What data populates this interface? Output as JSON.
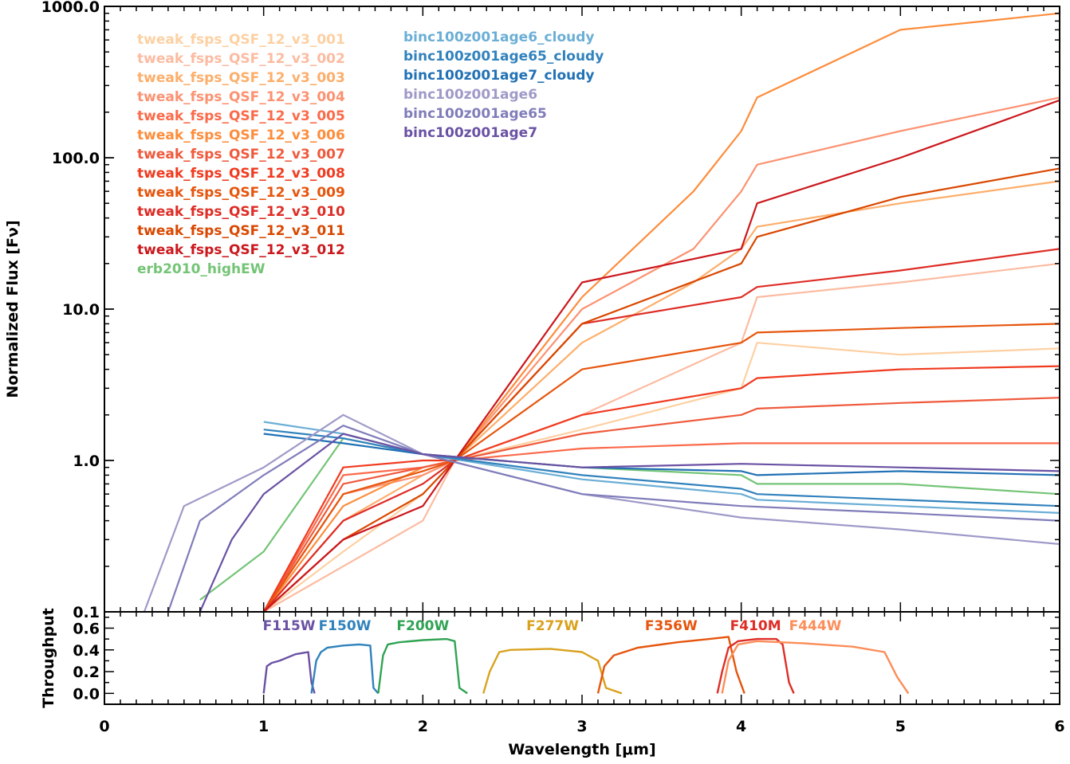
{
  "chart_data": [
    {
      "type": "line",
      "panel": "spectra",
      "title": "",
      "xlabel": "",
      "ylabel": "Normalized Flux [Fν]",
      "yscale": "log",
      "xlim": [
        0,
        6
      ],
      "ylim": [
        0.1,
        1000
      ],
      "yticks": [
        0.1,
        1.0,
        10.0,
        100.0,
        1000.0
      ],
      "ytick_labels": [
        "0.1",
        "1.0",
        "10.0",
        "100.0",
        "1000.0"
      ],
      "legend_left": [
        {
          "name": "tweak_fsps_QSF_12_v3_001",
          "color": "#fdd0a2"
        },
        {
          "name": "tweak_fsps_QSF_12_v3_002",
          "color": "#fcbba1"
        },
        {
          "name": "tweak_fsps_QSF_12_v3_003",
          "color": "#fdae6b"
        },
        {
          "name": "tweak_fsps_QSF_12_v3_004",
          "color": "#fc9272"
        },
        {
          "name": "tweak_fsps_QSF_12_v3_005",
          "color": "#fb6a4a"
        },
        {
          "name": "tweak_fsps_QSF_12_v3_006",
          "color": "#fd8d3c"
        },
        {
          "name": "tweak_fsps_QSF_12_v3_007",
          "color": "#ef5a3c"
        },
        {
          "name": "tweak_fsps_QSF_12_v3_008",
          "color": "#f03b20"
        },
        {
          "name": "tweak_fsps_QSF_12_v3_009",
          "color": "#e6550d"
        },
        {
          "name": "tweak_fsps_QSF_12_v3_010",
          "color": "#de2d26"
        },
        {
          "name": "tweak_fsps_QSF_12_v3_011",
          "color": "#d94801"
        },
        {
          "name": "tweak_fsps_QSF_12_v3_012",
          "color": "#cb181d"
        },
        {
          "name": "erb2010_highEW",
          "color": "#74c476"
        }
      ],
      "legend_right": [
        {
          "name": "binc100z001age6_cloudy",
          "color": "#6baed6"
        },
        {
          "name": "binc100z001age65_cloudy",
          "color": "#3182bd"
        },
        {
          "name": "binc100z001age7_cloudy",
          "color": "#2171b5"
        },
        {
          "name": "binc100z001age6",
          "color": "#9e9ac8"
        },
        {
          "name": "binc100z001age65",
          "color": "#807dba"
        },
        {
          "name": "binc100z001age7",
          "color": "#6a51a3"
        }
      ],
      "series": [
        {
          "name": "tweak_fsps_QSF_12_v3_001",
          "color": "#fdd0a2",
          "x": [
            1.0,
            1.5,
            2.0,
            2.2,
            3.0,
            4.0,
            4.1,
            5.0,
            6.0
          ],
          "y": [
            0.1,
            0.25,
            0.6,
            1.0,
            1.6,
            3.0,
            6.0,
            5.0,
            5.5
          ]
        },
        {
          "name": "tweak_fsps_QSF_12_v3_002",
          "color": "#fcbba1",
          "x": [
            1.0,
            1.5,
            2.0,
            2.2,
            3.0,
            4.0,
            4.1,
            5.0,
            6.0
          ],
          "y": [
            0.1,
            0.2,
            0.4,
            1.0,
            2.0,
            6.0,
            12.0,
            15.0,
            20.0
          ]
        },
        {
          "name": "tweak_fsps_QSF_12_v3_003",
          "color": "#fdae6b",
          "x": [
            1.0,
            1.5,
            2.0,
            2.2,
            3.0,
            3.7,
            4.0,
            4.1,
            5.0,
            6.0
          ],
          "y": [
            0.1,
            0.4,
            0.8,
            1.0,
            6.0,
            15.0,
            25.0,
            35.0,
            50.0,
            70.0
          ]
        },
        {
          "name": "tweak_fsps_QSF_12_v3_004",
          "color": "#fc9272",
          "x": [
            1.0,
            1.5,
            2.0,
            2.2,
            3.0,
            3.7,
            4.0,
            4.1,
            5.0,
            6.0
          ],
          "y": [
            0.1,
            0.6,
            0.8,
            1.0,
            10.0,
            25.0,
            60.0,
            90.0,
            150.0,
            250.0
          ]
        },
        {
          "name": "tweak_fsps_QSF_12_v3_005",
          "color": "#fb6a4a",
          "x": [
            1.0,
            1.5,
            2.0,
            2.2,
            3.0,
            4.0,
            4.1,
            5.0,
            6.0
          ],
          "y": [
            0.1,
            0.8,
            0.9,
            1.0,
            1.2,
            1.3,
            1.3,
            1.3,
            1.3
          ]
        },
        {
          "name": "tweak_fsps_QSF_12_v3_006",
          "color": "#fd8d3c",
          "x": [
            1.0,
            1.5,
            2.0,
            2.2,
            3.0,
            3.7,
            4.0,
            4.1,
            5.0,
            6.0
          ],
          "y": [
            0.1,
            0.5,
            0.9,
            1.0,
            12.0,
            60.0,
            150.0,
            250.0,
            700.0,
            900.0
          ]
        },
        {
          "name": "tweak_fsps_QSF_12_v3_007",
          "color": "#ef5a3c",
          "x": [
            1.0,
            1.5,
            2.0,
            2.2,
            3.0,
            4.0,
            4.1,
            5.0,
            6.0
          ],
          "y": [
            0.1,
            0.7,
            0.9,
            1.0,
            1.5,
            2.0,
            2.2,
            2.4,
            2.6
          ]
        },
        {
          "name": "tweak_fsps_QSF_12_v3_008",
          "color": "#f03b20",
          "x": [
            1.0,
            1.5,
            2.0,
            2.2,
            3.0,
            4.0,
            4.1,
            5.0,
            6.0
          ],
          "y": [
            0.1,
            0.9,
            1.0,
            1.0,
            2.0,
            3.0,
            3.5,
            4.0,
            4.2
          ]
        },
        {
          "name": "tweak_fsps_QSF_12_v3_009",
          "color": "#e6550d",
          "x": [
            1.0,
            1.5,
            2.0,
            2.2,
            3.0,
            4.0,
            4.1,
            5.0,
            6.0
          ],
          "y": [
            0.1,
            0.6,
            0.85,
            1.0,
            4.0,
            6.0,
            7.0,
            7.5,
            8.0
          ]
        },
        {
          "name": "tweak_fsps_QSF_12_v3_010",
          "color": "#de2d26",
          "x": [
            1.0,
            1.5,
            2.0,
            2.2,
            3.0,
            4.0,
            4.1,
            5.0,
            6.0
          ],
          "y": [
            0.1,
            0.4,
            0.7,
            1.0,
            8.0,
            12.0,
            14.0,
            18.0,
            25.0
          ]
        },
        {
          "name": "tweak_fsps_QSF_12_v3_011",
          "color": "#d94801",
          "x": [
            1.0,
            1.5,
            2.0,
            2.2,
            3.0,
            4.0,
            4.1,
            5.0,
            6.0
          ],
          "y": [
            0.1,
            0.3,
            0.6,
            1.0,
            8.0,
            20.0,
            30.0,
            55.0,
            85.0
          ]
        },
        {
          "name": "tweak_fsps_QSF_12_v3_012",
          "color": "#cb181d",
          "x": [
            1.0,
            1.5,
            2.0,
            2.2,
            3.0,
            4.0,
            4.1,
            5.0,
            6.0
          ],
          "y": [
            0.1,
            0.3,
            0.5,
            1.0,
            15.0,
            25.0,
            50.0,
            100.0,
            240.0
          ]
        },
        {
          "name": "erb2010_highEW",
          "color": "#74c476",
          "x": [
            0.6,
            1.0,
            1.5,
            2.0,
            3.0,
            4.0,
            4.1,
            5.0,
            6.0
          ],
          "y": [
            0.12,
            0.25,
            1.4,
            1.1,
            0.9,
            0.8,
            0.7,
            0.7,
            0.6
          ]
        },
        {
          "name": "binc100z001age6_cloudy",
          "color": "#6baed6",
          "x": [
            1.0,
            1.5,
            2.0,
            3.0,
            4.0,
            4.1,
            5.0,
            6.0
          ],
          "y": [
            1.8,
            1.5,
            1.1,
            0.75,
            0.6,
            0.55,
            0.5,
            0.45
          ]
        },
        {
          "name": "binc100z001age65_cloudy",
          "color": "#3182bd",
          "x": [
            1.0,
            1.5,
            2.0,
            3.0,
            4.0,
            4.1,
            5.0,
            6.0
          ],
          "y": [
            1.6,
            1.4,
            1.1,
            0.8,
            0.65,
            0.6,
            0.55,
            0.5
          ]
        },
        {
          "name": "binc100z001age7_cloudy",
          "color": "#2171b5",
          "x": [
            1.0,
            1.5,
            2.0,
            3.0,
            4.0,
            4.1,
            5.0,
            6.0
          ],
          "y": [
            1.5,
            1.3,
            1.1,
            0.9,
            0.85,
            0.8,
            0.85,
            0.8
          ]
        },
        {
          "name": "binc100z001age6",
          "color": "#9e9ac8",
          "x": [
            0.25,
            0.5,
            1.0,
            1.5,
            2.0,
            3.0,
            4.0,
            5.0,
            6.0
          ],
          "y": [
            0.1,
            0.5,
            0.9,
            2.0,
            1.1,
            0.6,
            0.42,
            0.35,
            0.28
          ]
        },
        {
          "name": "binc100z001age65",
          "color": "#807dba",
          "x": [
            0.4,
            0.6,
            1.0,
            1.5,
            2.0,
            3.0,
            4.0,
            5.0,
            6.0
          ],
          "y": [
            0.1,
            0.4,
            0.8,
            1.7,
            1.1,
            0.6,
            0.5,
            0.45,
            0.4
          ]
        },
        {
          "name": "binc100z001age7",
          "color": "#6a51a3",
          "x": [
            0.6,
            0.8,
            1.0,
            1.5,
            2.0,
            3.0,
            4.0,
            5.0,
            6.0
          ],
          "y": [
            0.1,
            0.3,
            0.6,
            1.5,
            1.1,
            0.9,
            0.95,
            0.9,
            0.85
          ]
        }
      ]
    },
    {
      "type": "line",
      "panel": "throughput",
      "title": "",
      "xlabel": "Wavelength [μm]",
      "ylabel": "Throughput",
      "xlim": [
        0,
        6
      ],
      "ylim": [
        -0.1,
        0.75
      ],
      "xticks": [
        0,
        1,
        2,
        3,
        4,
        5,
        6
      ],
      "xtick_labels": [
        "0",
        "1",
        "2",
        "3",
        "4",
        "5",
        "6"
      ],
      "yticks": [
        0.0,
        0.2,
        0.4,
        0.6
      ],
      "ytick_labels": [
        "0.0",
        "0.2",
        "0.4",
        "0.6"
      ],
      "filters": [
        {
          "name": "F115W",
          "color": "#6a51a3",
          "x": [
            1.0,
            1.02,
            1.05,
            1.1,
            1.2,
            1.28,
            1.3,
            1.32
          ],
          "y": [
            0.0,
            0.25,
            0.28,
            0.3,
            0.36,
            0.38,
            0.1,
            0.0
          ]
        },
        {
          "name": "F150W",
          "color": "#3182bd",
          "x": [
            1.3,
            1.33,
            1.36,
            1.4,
            1.5,
            1.6,
            1.67,
            1.69,
            1.72
          ],
          "y": [
            0.0,
            0.3,
            0.38,
            0.42,
            0.44,
            0.45,
            0.44,
            0.05,
            0.0
          ]
        },
        {
          "name": "F200W",
          "color": "#31a354",
          "x": [
            1.72,
            1.75,
            1.78,
            1.85,
            2.0,
            2.15,
            2.2,
            2.23,
            2.28
          ],
          "y": [
            0.0,
            0.35,
            0.45,
            0.47,
            0.49,
            0.5,
            0.48,
            0.05,
            0.0
          ]
        },
        {
          "name": "F277W",
          "color": "#d9a21e",
          "x": [
            2.38,
            2.42,
            2.48,
            2.55,
            2.8,
            3.0,
            3.1,
            3.15,
            3.25
          ],
          "y": [
            0.0,
            0.2,
            0.38,
            0.4,
            0.41,
            0.38,
            0.3,
            0.05,
            0.0
          ]
        },
        {
          "name": "F356W",
          "color": "#e6550d",
          "x": [
            3.1,
            3.14,
            3.2,
            3.35,
            3.6,
            3.8,
            3.92,
            3.97,
            4.02
          ],
          "y": [
            0.0,
            0.25,
            0.35,
            0.42,
            0.47,
            0.5,
            0.52,
            0.2,
            0.0
          ]
        },
        {
          "name": "F410M",
          "color": "#de2d26",
          "x": [
            3.85,
            3.88,
            3.92,
            3.98,
            4.1,
            4.22,
            4.26,
            4.3,
            4.33
          ],
          "y": [
            0.0,
            0.2,
            0.42,
            0.48,
            0.5,
            0.5,
            0.45,
            0.1,
            0.0
          ]
        },
        {
          "name": "F444W",
          "color": "#fc8d59",
          "x": [
            3.88,
            3.92,
            3.98,
            4.1,
            4.4,
            4.7,
            4.9,
            4.98,
            5.05
          ],
          "y": [
            0.0,
            0.3,
            0.45,
            0.48,
            0.46,
            0.43,
            0.38,
            0.15,
            0.0
          ]
        }
      ]
    }
  ]
}
